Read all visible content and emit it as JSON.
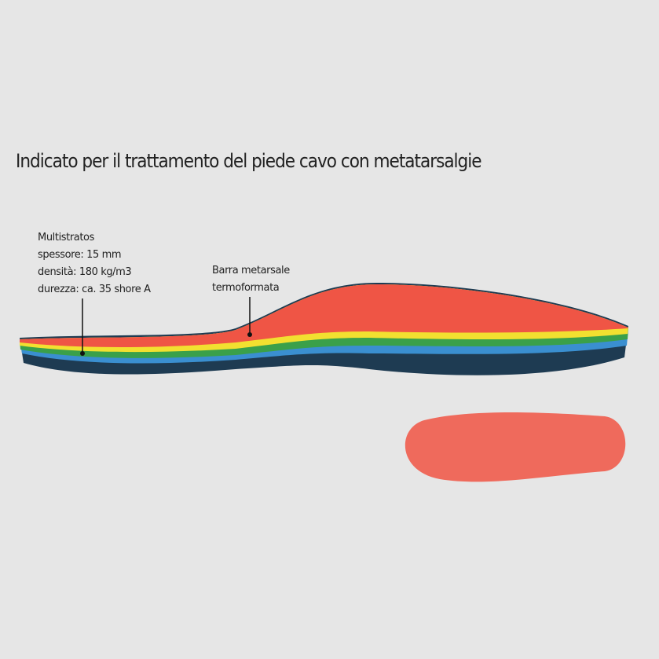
{
  "title": "Indicato per il trattamento del piede cavo con metatarsalgie",
  "callouts": [
    {
      "lines": [
        "Multistratos",
        "spessore: 15 mm",
        "densità: 180 kg/m3",
        "durezza: ca. 35 shore A"
      ]
    },
    {
      "lines": [
        "Barra metarsale",
        "termoformata"
      ]
    }
  ]
}
